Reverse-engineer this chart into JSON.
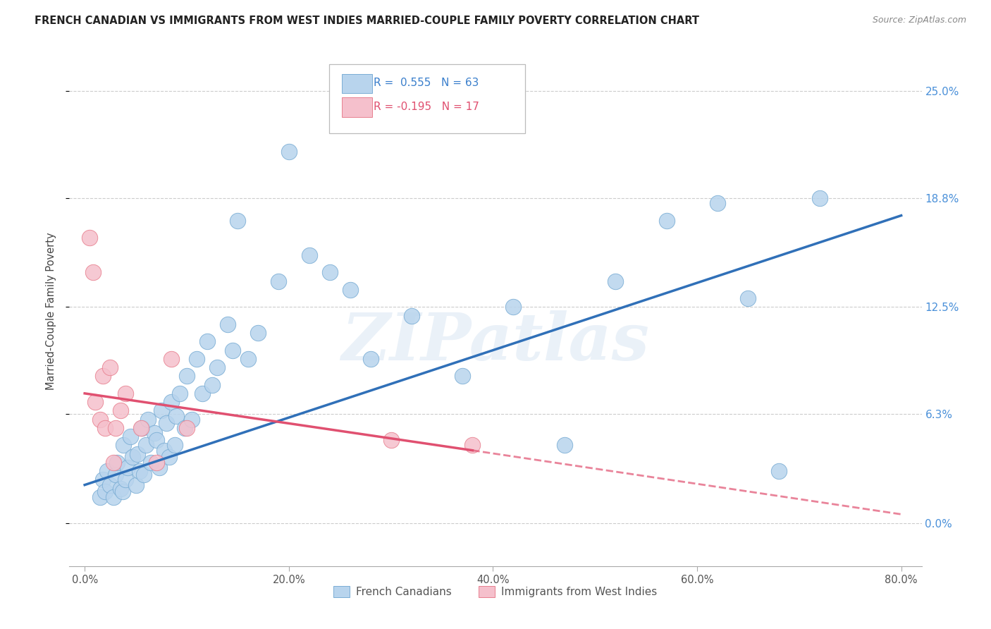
{
  "title": "FRENCH CANADIAN VS IMMIGRANTS FROM WEST INDIES MARRIED-COUPLE FAMILY POVERTY CORRELATION CHART",
  "source": "Source: ZipAtlas.com",
  "ylabel": "Married-Couple Family Poverty",
  "y_tick_labels": [
    "0.0%",
    "6.3%",
    "12.5%",
    "18.8%",
    "25.0%"
  ],
  "y_tick_values": [
    0.0,
    6.3,
    12.5,
    18.8,
    25.0
  ],
  "x_tick_labels": [
    "0.0%",
    "20.0%",
    "40.0%",
    "60.0%",
    "80.0%"
  ],
  "x_tick_values": [
    0.0,
    20.0,
    40.0,
    60.0,
    80.0
  ],
  "xlim": [
    -1.5,
    82.0
  ],
  "ylim": [
    -2.5,
    27.0
  ],
  "blue_label": "French Canadians",
  "pink_label": "Immigrants from West Indies",
  "blue_R": "R =  0.555",
  "blue_N": "N = 63",
  "pink_R": "R = -0.195",
  "pink_N": "N = 17",
  "blue_color": "#b8d4ed",
  "blue_edge_color": "#7aadd4",
  "blue_line_color": "#3070b8",
  "pink_color": "#f5c0cc",
  "pink_edge_color": "#e8808f",
  "pink_line_color": "#e05070",
  "watermark_text": "ZIPatlas",
  "blue_scatter_x": [
    1.5,
    1.8,
    2.0,
    2.2,
    2.5,
    2.8,
    3.0,
    3.2,
    3.5,
    3.7,
    3.8,
    4.0,
    4.2,
    4.5,
    4.7,
    5.0,
    5.2,
    5.4,
    5.6,
    5.8,
    6.0,
    6.2,
    6.5,
    6.8,
    7.0,
    7.3,
    7.5,
    7.8,
    8.0,
    8.3,
    8.5,
    8.8,
    9.0,
    9.3,
    9.8,
    10.0,
    10.5,
    11.0,
    11.5,
    12.0,
    12.5,
    13.0,
    14.0,
    14.5,
    15.0,
    16.0,
    17.0,
    19.0,
    20.0,
    22.0,
    24.0,
    26.0,
    28.0,
    32.0,
    37.0,
    42.0,
    47.0,
    52.0,
    57.0,
    62.0,
    65.0,
    68.0,
    72.0
  ],
  "blue_scatter_y": [
    1.5,
    2.5,
    1.8,
    3.0,
    2.2,
    1.5,
    2.8,
    3.5,
    2.0,
    1.8,
    4.5,
    2.5,
    3.2,
    5.0,
    3.8,
    2.2,
    4.0,
    3.0,
    5.5,
    2.8,
    4.5,
    6.0,
    3.5,
    5.2,
    4.8,
    3.2,
    6.5,
    4.2,
    5.8,
    3.8,
    7.0,
    4.5,
    6.2,
    7.5,
    5.5,
    8.5,
    6.0,
    9.5,
    7.5,
    10.5,
    8.0,
    9.0,
    11.5,
    10.0,
    17.5,
    9.5,
    11.0,
    14.0,
    21.5,
    15.5,
    14.5,
    13.5,
    9.5,
    12.0,
    8.5,
    12.5,
    4.5,
    14.0,
    17.5,
    18.5,
    13.0,
    3.0,
    18.8
  ],
  "pink_scatter_x": [
    0.5,
    0.8,
    1.0,
    1.5,
    1.8,
    2.0,
    2.5,
    2.8,
    3.0,
    3.5,
    4.0,
    5.5,
    7.0,
    8.5,
    10.0,
    30.0,
    38.0
  ],
  "pink_scatter_y": [
    16.5,
    14.5,
    7.0,
    6.0,
    8.5,
    5.5,
    9.0,
    3.5,
    5.5,
    6.5,
    7.5,
    5.5,
    3.5,
    9.5,
    5.5,
    4.8,
    4.5
  ],
  "blue_line_x0": 0.0,
  "blue_line_y0": 2.2,
  "blue_line_x1": 80.0,
  "blue_line_y1": 17.8,
  "pink_line_x0": 0.0,
  "pink_line_y0": 7.5,
  "pink_line_x1": 38.0,
  "pink_line_y1": 4.2,
  "pink_dash_x0": 38.0,
  "pink_dash_y0": 4.2,
  "pink_dash_x1": 80.0,
  "pink_dash_y1": 0.5
}
